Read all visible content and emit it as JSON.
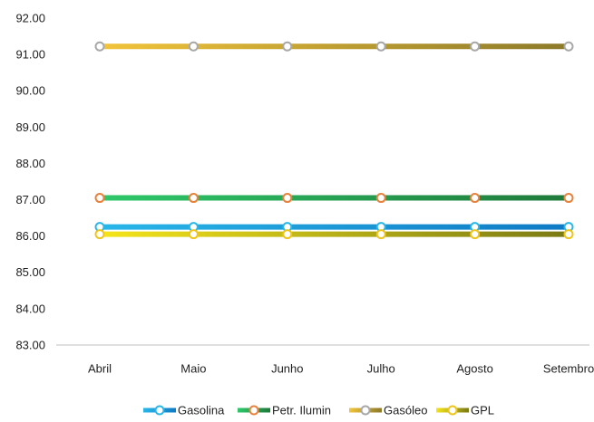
{
  "chart_data": {
    "type": "line",
    "title": "",
    "xlabel": "",
    "ylabel": "",
    "categories": [
      "Abril",
      "Maio",
      "Junho",
      "Julho",
      "Agosto",
      "Setembro"
    ],
    "ylim": [
      83.0,
      92.0
    ],
    "yticks": [
      "92.00",
      "91.00",
      "90.00",
      "89.00",
      "88.00",
      "87.00",
      "86.00",
      "85.00",
      "84.00",
      "83.00"
    ],
    "grid": false,
    "legend_position": "bottom",
    "series": [
      {
        "name": "Gasolina",
        "values": [
          86.25,
          86.25,
          86.25,
          86.25,
          86.25,
          86.25
        ],
        "color_start": "#29b6e8",
        "color_end": "#0f7ac4",
        "marker_stroke": "#29b6e8"
      },
      {
        "name": "Petr. Ilumin",
        "values": [
          87.05,
          87.05,
          87.05,
          87.05,
          87.05,
          87.05
        ],
        "color_start": "#2ec86a",
        "color_end": "#1f7a3a",
        "marker_stroke": "#e8823c"
      },
      {
        "name": "Gasóleo",
        "values": [
          91.22,
          91.22,
          91.22,
          91.22,
          91.22,
          91.22
        ],
        "color_start": "#f2c43a",
        "color_end": "#8c7a2a",
        "marker_stroke": "#a8a8a8"
      },
      {
        "name": "GPL",
        "values": [
          86.05,
          86.05,
          86.05,
          86.05,
          86.05,
          86.05
        ],
        "color_start": "#f5e51a",
        "color_end": "#7a7a14",
        "marker_stroke": "#f0c419"
      }
    ]
  }
}
